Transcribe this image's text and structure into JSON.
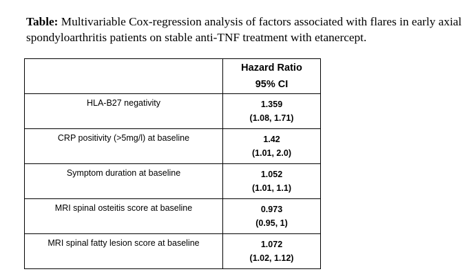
{
  "caption": {
    "lead": "Table:",
    "text": " Multivariable Cox-regression analysis of factors associated with flares in early axial spondyloarthritis patients on stable anti-TNF treatment with etanercept."
  },
  "table": {
    "header": {
      "factor": "",
      "hr_line1": "Hazard Ratio",
      "hr_line2": "95% CI"
    },
    "rows": [
      {
        "factor": "HLA-B27 negativity",
        "hr": "1.359",
        "ci": "(1.08, 1.71)"
      },
      {
        "factor": "CRP positivity (>5mg/l) at baseline",
        "hr": "1.42",
        "ci": "(1.01, 2.0)"
      },
      {
        "factor": "Symptom duration at baseline",
        "hr": "1.052",
        "ci": "(1.01, 1.1)"
      },
      {
        "factor": "MRI spinal osteitis score at baseline",
        "hr": "0.973",
        "ci": "(0.95, 1)"
      },
      {
        "factor": "MRI spinal fatty lesion score at baseline",
        "hr": "1.072",
        "ci": "(1.02, 1.12)"
      }
    ]
  }
}
